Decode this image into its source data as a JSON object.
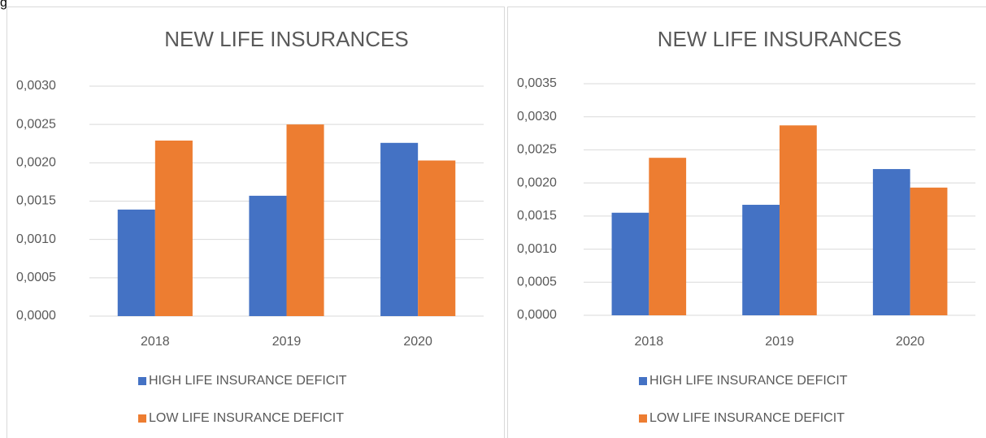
{
  "fragment": "g",
  "chart_data": [
    {
      "type": "bar",
      "title": "NEW LIFE INSURANCES",
      "categories": [
        "2018",
        "2019",
        "2020"
      ],
      "series": [
        {
          "name": "HIGH LIFE INSURANCE DEFICIT",
          "color": "#4472c4",
          "values": [
            0.00139,
            0.00157,
            0.00226
          ]
        },
        {
          "name": "LOW LIFE INSURANCE DEFICIT",
          "color": "#ed7d31",
          "values": [
            0.00229,
            0.0025,
            0.00203
          ]
        }
      ],
      "ylim": [
        0,
        0.003
      ],
      "yticks": [
        {
          "value": 0,
          "label": "0,0000"
        },
        {
          "value": 0.0005,
          "label": "0,0005"
        },
        {
          "value": 0.001,
          "label": "0,0010"
        },
        {
          "value": 0.0015,
          "label": "0,0015"
        },
        {
          "value": 0.002,
          "label": "0,0020"
        },
        {
          "value": 0.0025,
          "label": "0,0025"
        },
        {
          "value": 0.003,
          "label": "0,0030"
        }
      ],
      "grid": true,
      "legend": "bottom"
    },
    {
      "type": "bar",
      "title": "NEW LIFE INSURANCES",
      "categories": [
        "2018",
        "2019",
        "2020"
      ],
      "series": [
        {
          "name": "HIGH LIFE INSURANCE DEFICIT",
          "color": "#4472c4",
          "values": [
            0.00155,
            0.00167,
            0.00221
          ]
        },
        {
          "name": "LOW LIFE INSURANCE DEFICIT",
          "color": "#ed7d31",
          "values": [
            0.00238,
            0.00287,
            0.00193
          ]
        }
      ],
      "ylim": [
        0,
        0.0035
      ],
      "yticks": [
        {
          "value": 0,
          "label": "0,0000"
        },
        {
          "value": 0.0005,
          "label": "0,0005"
        },
        {
          "value": 0.001,
          "label": "0,0010"
        },
        {
          "value": 0.0015,
          "label": "0,0015"
        },
        {
          "value": 0.002,
          "label": "0,0020"
        },
        {
          "value": 0.0025,
          "label": "0,0025"
        },
        {
          "value": 0.003,
          "label": "0,0030"
        },
        {
          "value": 0.0035,
          "label": "0,0035"
        }
      ],
      "grid": true,
      "legend": "bottom"
    }
  ]
}
